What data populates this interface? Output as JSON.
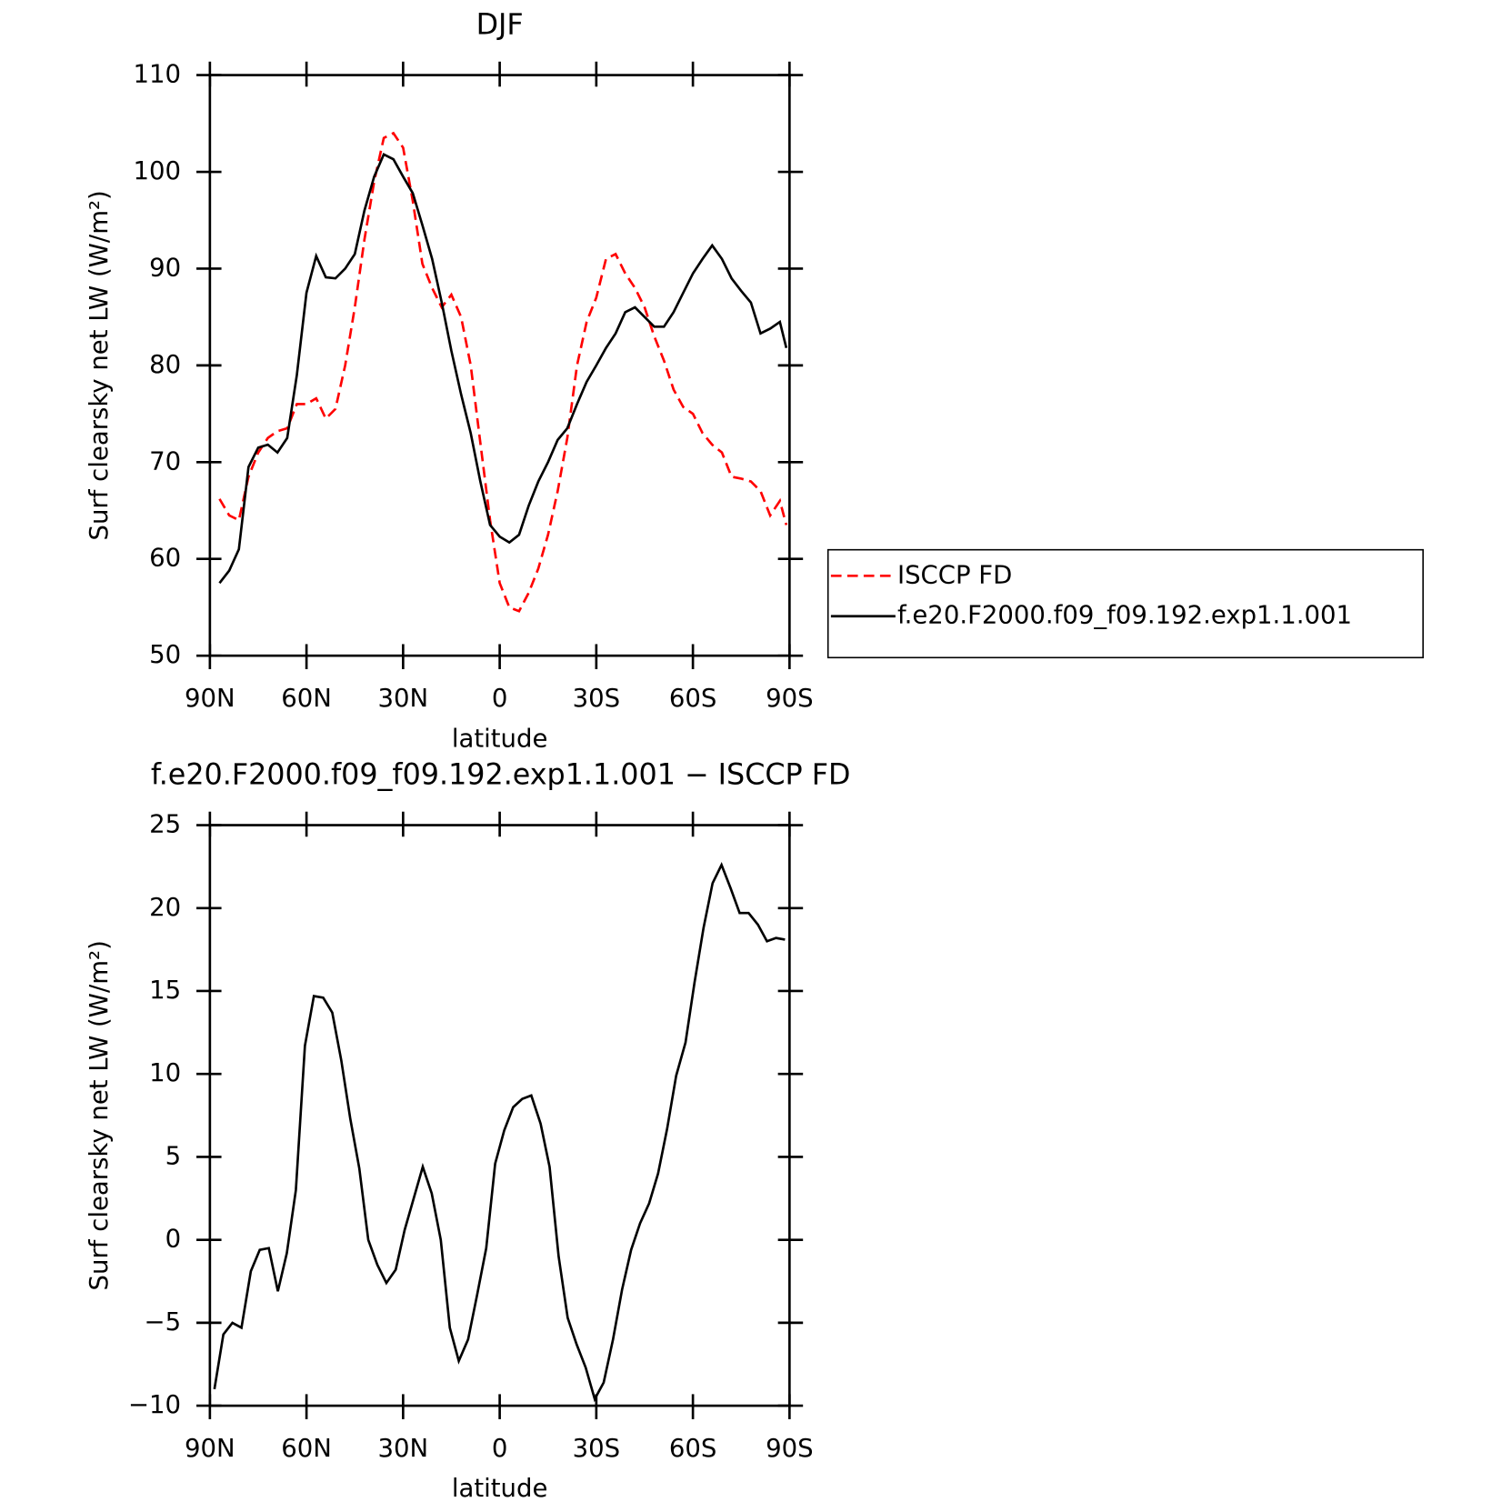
{
  "chart_data": [
    {
      "type": "line",
      "title": "DJF",
      "xlabel": "latitude",
      "ylabel": "Surf clearsky net LW (W/m²)",
      "x": [
        87,
        84,
        81,
        78,
        75,
        72,
        69,
        66,
        63,
        60,
        57,
        54,
        51,
        48,
        45,
        42,
        39,
        36,
        33,
        30,
        27,
        24,
        21,
        18,
        15,
        12,
        9,
        6,
        3,
        0,
        -3,
        -6,
        -9,
        -12,
        -15,
        -18,
        -21,
        -24,
        -27,
        -30,
        -33,
        -36,
        -39,
        -42,
        -45,
        -48,
        -51,
        -54,
        -57,
        -60,
        -63,
        -66,
        -69,
        -72,
        -75,
        -78,
        -81,
        -84,
        -87,
        -89
      ],
      "series": [
        {
          "name": "ISCCP FD",
          "color": "#ff0000",
          "linestyle": "dashed",
          "values": [
            66.2,
            64.5,
            64,
            68.5,
            71,
            72.5,
            73.2,
            73.5,
            76,
            76,
            76.6,
            74.5,
            75.5,
            80,
            86,
            93,
            99,
            103.5,
            104,
            102.5,
            97,
            90.5,
            88,
            86,
            87.3,
            85,
            80,
            72,
            64,
            57.5,
            55,
            54.6,
            56.5,
            59,
            62.5,
            67,
            72.5,
            80,
            84.5,
            87,
            91,
            91.5,
            89.5,
            88,
            86,
            83,
            80.5,
            77.5,
            75.7,
            75,
            73,
            71.8,
            71,
            68.5,
            68.3,
            68,
            67,
            64.5,
            66,
            63.5
          ]
        },
        {
          "name": "f.e20.F2000.f09_f09.192.exp1.1.001",
          "color": "#000000",
          "linestyle": "solid",
          "values": [
            57.5,
            58.8,
            61,
            69.5,
            71.5,
            71.8,
            71,
            72.5,
            79,
            87.5,
            91.3,
            89.1,
            89,
            90,
            91.5,
            96,
            99.5,
            101.8,
            101.3,
            99.5,
            97.8,
            94.5,
            91,
            86.5,
            81.5,
            77,
            73,
            68,
            63.5,
            62.3,
            61.7,
            62.5,
            65.5,
            68,
            70,
            72.3,
            73.5,
            76,
            78.3,
            80,
            81.8,
            83.3,
            85.5,
            86,
            85,
            84,
            84,
            85.5,
            87.5,
            89.5,
            91,
            92.4,
            91,
            89,
            87.7,
            86.5,
            83.3,
            83.8,
            84.5,
            81.8
          ]
        }
      ],
      "xlim": [
        90,
        -90
      ],
      "ylim": [
        50,
        110
      ],
      "xticks": [
        {
          "value": 90,
          "label": "90N"
        },
        {
          "value": 60,
          "label": "60N"
        },
        {
          "value": 30,
          "label": "30N"
        },
        0,
        {
          "value": -30,
          "label": "30S"
        },
        {
          "value": -60,
          "label": "60S"
        },
        {
          "value": -90,
          "label": "90S"
        }
      ],
      "yticks": [
        50,
        60,
        70,
        80,
        90,
        100,
        110
      ],
      "legend": "right"
    },
    {
      "type": "line",
      "title": "f.e20.F2000.f09_f09.192.exp1.1.001 − ISCCP FD",
      "xlabel": "latitude",
      "ylabel": "Surf clearsky net LW (W/m²)",
      "x": [
        88.6,
        85.8,
        83.0,
        80.2,
        77.3,
        74.5,
        71.7,
        68.9,
        66.1,
        63.3,
        60.5,
        57.7,
        54.8,
        52.0,
        49.2,
        46.4,
        43.6,
        40.8,
        38.0,
        35.2,
        32.3,
        29.5,
        26.7,
        23.9,
        21.1,
        18.3,
        15.5,
        12.7,
        9.8,
        7.0,
        4.2,
        1.4,
        -1.4,
        -4.2,
        -7.0,
        -9.8,
        -12.7,
        -15.5,
        -18.3,
        -21.1,
        -23.9,
        -26.7,
        -29.5,
        -32.3,
        -35.2,
        -38.0,
        -40.8,
        -43.6,
        -46.4,
        -49.2,
        -52.0,
        -54.8,
        -57.7,
        -60.5,
        -63.3,
        -66.1,
        -68.9,
        -71.7,
        -74.5,
        -77.3,
        -80.2,
        -83.0,
        -85.8,
        -88.6
      ],
      "series": [
        {
          "color": "#000000",
          "linestyle": "solid",
          "values": [
            -9,
            -5.7,
            -5,
            -5.3,
            -1.9,
            -0.6,
            -0.5,
            -3.1,
            -0.8,
            3,
            11.7,
            14.7,
            14.6,
            13.7,
            10.8,
            7.3,
            4.3,
            0,
            -1.5,
            -2.6,
            -1.8,
            0.6,
            2.5,
            4.4,
            2.8,
            0,
            -5.3,
            -7.3,
            -6,
            -3.3,
            -0.5,
            4.6,
            6.6,
            8,
            8.5,
            8.7,
            7,
            4.4,
            -1,
            -4.7,
            -6.3,
            -7.7,
            -9.6,
            -8.6,
            -6,
            -3,
            -0.6,
            1,
            2.2,
            4,
            6.7,
            9.9,
            11.9,
            15.5,
            18.8,
            21.5,
            22.6,
            21.2,
            19.7,
            19.7,
            19,
            18,
            18.2,
            18.1
          ]
        }
      ],
      "xlim": [
        90,
        -90
      ],
      "ylim": [
        -10,
        25
      ],
      "xticks": [
        {
          "value": 90,
          "label": "90N"
        },
        {
          "value": 60,
          "label": "60N"
        },
        {
          "value": 30,
          "label": "30N"
        },
        0,
        {
          "value": -30,
          "label": "30S"
        },
        {
          "value": -60,
          "label": "60S"
        },
        {
          "value": -90,
          "label": "90S"
        }
      ],
      "yticks": [
        {
          "value": -10,
          "label": "−10"
        },
        {
          "value": -5,
          "label": "−5"
        },
        0,
        5,
        10,
        15,
        20,
        25
      ]
    }
  ]
}
